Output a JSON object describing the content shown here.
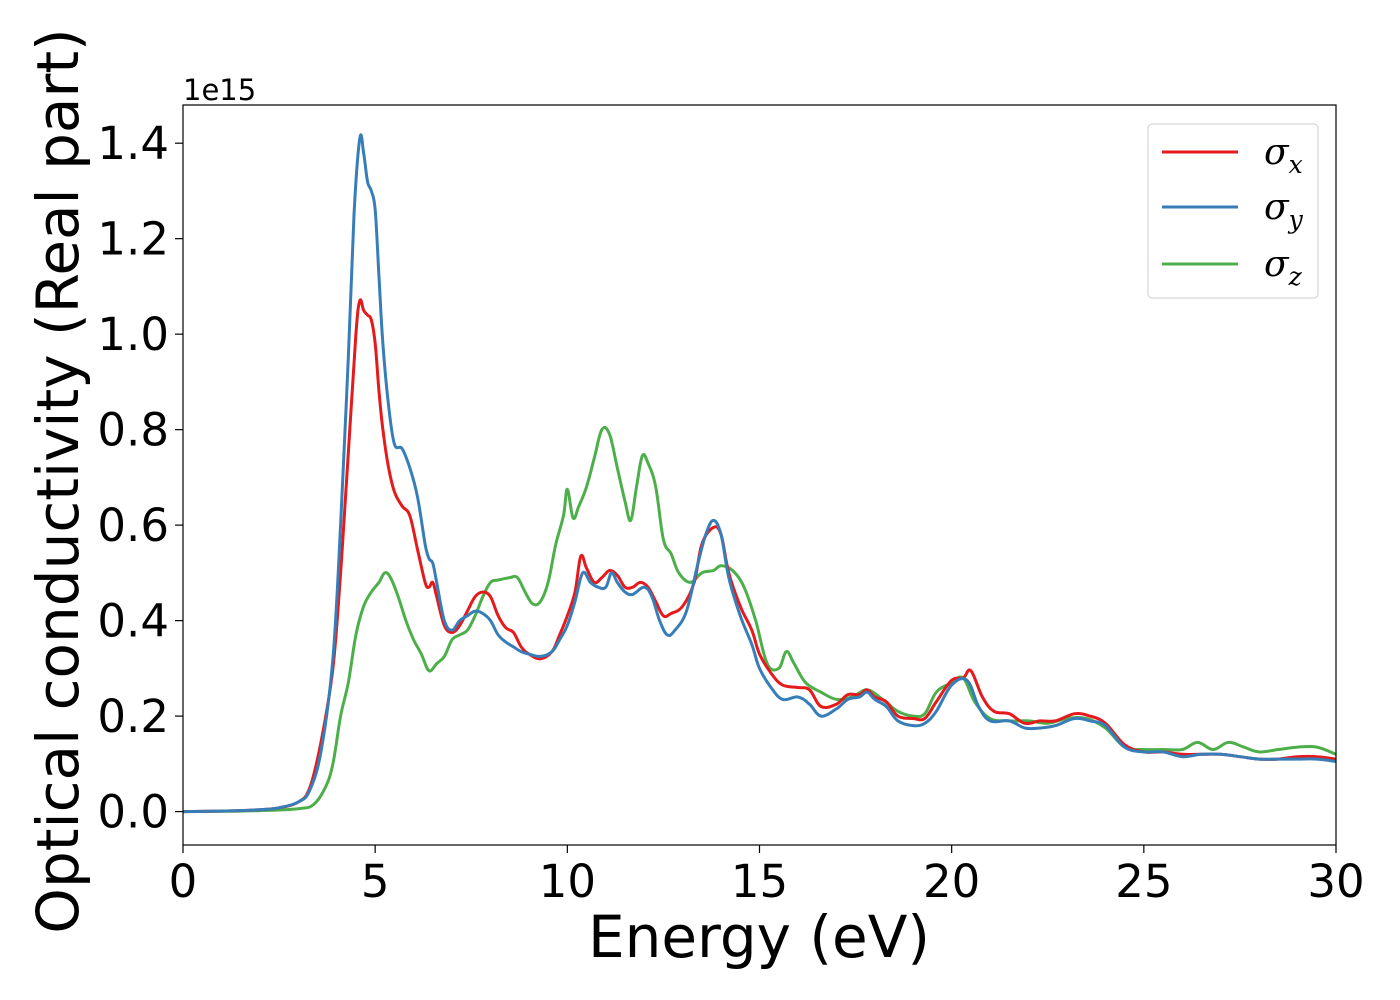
{
  "chart_data": {
    "type": "line",
    "xlabel": "Energy (eV)",
    "ylabel": "Optical conductivity (Real part)",
    "y_offset_text": "1e15",
    "xlim": [
      0,
      30
    ],
    "ylim": [
      -0.07,
      1.48
    ],
    "xticks": [
      0,
      5,
      10,
      15,
      20,
      25,
      30
    ],
    "xtick_labels": [
      "0",
      "5",
      "10",
      "15",
      "20",
      "25",
      "30"
    ],
    "yticks": [
      0.0,
      0.2,
      0.4,
      0.6,
      0.8,
      1.0,
      1.2,
      1.4
    ],
    "ytick_labels": [
      "0.0",
      "0.2",
      "0.4",
      "0.6",
      "0.8",
      "1.0",
      "1.2",
      "1.4"
    ],
    "grid": false,
    "legend_position": "top-right",
    "series": [
      {
        "name": "σx",
        "label_symbol": "σ",
        "label_sub": "x",
        "color": "#e41a1c",
        "points": [
          [
            0,
            0
          ],
          [
            1,
            0.001
          ],
          [
            2,
            0.004
          ],
          [
            2.5,
            0.008
          ],
          [
            3,
            0.02
          ],
          [
            3.3,
            0.05
          ],
          [
            3.6,
            0.15
          ],
          [
            3.9,
            0.3
          ],
          [
            4.1,
            0.5
          ],
          [
            4.3,
            0.75
          ],
          [
            4.5,
            1.0
          ],
          [
            4.6,
            1.07
          ],
          [
            4.7,
            1.05
          ],
          [
            4.8,
            1.04
          ],
          [
            4.9,
            1.03
          ],
          [
            5.0,
            0.98
          ],
          [
            5.1,
            0.88
          ],
          [
            5.2,
            0.8
          ],
          [
            5.35,
            0.72
          ],
          [
            5.5,
            0.67
          ],
          [
            5.7,
            0.64
          ],
          [
            5.9,
            0.62
          ],
          [
            6.1,
            0.55
          ],
          [
            6.3,
            0.48
          ],
          [
            6.4,
            0.47
          ],
          [
            6.5,
            0.48
          ],
          [
            6.6,
            0.45
          ],
          [
            6.8,
            0.39
          ],
          [
            7.0,
            0.375
          ],
          [
            7.2,
            0.39
          ],
          [
            7.4,
            0.42
          ],
          [
            7.6,
            0.45
          ],
          [
            7.8,
            0.46
          ],
          [
            8.0,
            0.45
          ],
          [
            8.2,
            0.41
          ],
          [
            8.4,
            0.385
          ],
          [
            8.6,
            0.375
          ],
          [
            8.8,
            0.345
          ],
          [
            9.0,
            0.33
          ],
          [
            9.3,
            0.32
          ],
          [
            9.6,
            0.335
          ],
          [
            9.8,
            0.37
          ],
          [
            10.0,
            0.41
          ],
          [
            10.2,
            0.46
          ],
          [
            10.35,
            0.535
          ],
          [
            10.5,
            0.51
          ],
          [
            10.7,
            0.48
          ],
          [
            10.9,
            0.49
          ],
          [
            11.1,
            0.505
          ],
          [
            11.3,
            0.495
          ],
          [
            11.5,
            0.47
          ],
          [
            11.7,
            0.47
          ],
          [
            11.9,
            0.48
          ],
          [
            12.1,
            0.47
          ],
          [
            12.3,
            0.44
          ],
          [
            12.5,
            0.41
          ],
          [
            12.7,
            0.415
          ],
          [
            13.0,
            0.43
          ],
          [
            13.3,
            0.48
          ],
          [
            13.5,
            0.56
          ],
          [
            13.8,
            0.595
          ],
          [
            14.0,
            0.58
          ],
          [
            14.2,
            0.5
          ],
          [
            14.5,
            0.43
          ],
          [
            14.8,
            0.38
          ],
          [
            15.0,
            0.33
          ],
          [
            15.3,
            0.29
          ],
          [
            15.6,
            0.265
          ],
          [
            16.0,
            0.26
          ],
          [
            16.3,
            0.255
          ],
          [
            16.6,
            0.22
          ],
          [
            17.0,
            0.225
          ],
          [
            17.3,
            0.245
          ],
          [
            17.6,
            0.245
          ],
          [
            17.8,
            0.255
          ],
          [
            18.0,
            0.24
          ],
          [
            18.3,
            0.23
          ],
          [
            18.6,
            0.2
          ],
          [
            19.0,
            0.195
          ],
          [
            19.3,
            0.195
          ],
          [
            19.6,
            0.23
          ],
          [
            20.0,
            0.275
          ],
          [
            20.3,
            0.28
          ],
          [
            20.5,
            0.295
          ],
          [
            20.8,
            0.24
          ],
          [
            21.1,
            0.21
          ],
          [
            21.5,
            0.205
          ],
          [
            21.9,
            0.185
          ],
          [
            22.3,
            0.19
          ],
          [
            22.7,
            0.19
          ],
          [
            23.2,
            0.205
          ],
          [
            23.6,
            0.2
          ],
          [
            24.0,
            0.185
          ],
          [
            24.5,
            0.14
          ],
          [
            25.0,
            0.125
          ],
          [
            25.5,
            0.125
          ],
          [
            26.0,
            0.12
          ],
          [
            26.5,
            0.12
          ],
          [
            27.0,
            0.12
          ],
          [
            27.5,
            0.115
          ],
          [
            28.0,
            0.11
          ],
          [
            28.5,
            0.11
          ],
          [
            29.0,
            0.115
          ],
          [
            29.5,
            0.115
          ],
          [
            30,
            0.11
          ]
        ]
      },
      {
        "name": "σy",
        "label_symbol": "σ",
        "label_sub": "y",
        "color": "#377eb8",
        "points": [
          [
            0,
            0
          ],
          [
            1,
            0.001
          ],
          [
            2,
            0.004
          ],
          [
            2.5,
            0.008
          ],
          [
            3,
            0.02
          ],
          [
            3.3,
            0.045
          ],
          [
            3.6,
            0.13
          ],
          [
            3.9,
            0.32
          ],
          [
            4.1,
            0.6
          ],
          [
            4.3,
            0.95
          ],
          [
            4.45,
            1.25
          ],
          [
            4.6,
            1.41
          ],
          [
            4.7,
            1.38
          ],
          [
            4.8,
            1.32
          ],
          [
            4.9,
            1.3
          ],
          [
            5.0,
            1.26
          ],
          [
            5.1,
            1.12
          ],
          [
            5.2,
            0.98
          ],
          [
            5.35,
            0.85
          ],
          [
            5.5,
            0.77
          ],
          [
            5.7,
            0.76
          ],
          [
            5.9,
            0.72
          ],
          [
            6.1,
            0.66
          ],
          [
            6.3,
            0.56
          ],
          [
            6.4,
            0.53
          ],
          [
            6.5,
            0.52
          ],
          [
            6.6,
            0.48
          ],
          [
            6.8,
            0.4
          ],
          [
            7.0,
            0.38
          ],
          [
            7.2,
            0.4
          ],
          [
            7.4,
            0.41
          ],
          [
            7.6,
            0.42
          ],
          [
            7.8,
            0.415
          ],
          [
            8.0,
            0.4
          ],
          [
            8.2,
            0.37
          ],
          [
            8.4,
            0.355
          ],
          [
            8.6,
            0.345
          ],
          [
            8.8,
            0.335
          ],
          [
            9.0,
            0.33
          ],
          [
            9.3,
            0.325
          ],
          [
            9.6,
            0.335
          ],
          [
            9.8,
            0.36
          ],
          [
            10.0,
            0.39
          ],
          [
            10.2,
            0.44
          ],
          [
            10.4,
            0.5
          ],
          [
            10.6,
            0.48
          ],
          [
            10.8,
            0.47
          ],
          [
            11.0,
            0.47
          ],
          [
            11.15,
            0.5
          ],
          [
            11.3,
            0.48
          ],
          [
            11.5,
            0.46
          ],
          [
            11.7,
            0.455
          ],
          [
            12.0,
            0.47
          ],
          [
            12.2,
            0.45
          ],
          [
            12.4,
            0.4
          ],
          [
            12.6,
            0.37
          ],
          [
            12.8,
            0.38
          ],
          [
            13.1,
            0.42
          ],
          [
            13.4,
            0.52
          ],
          [
            13.6,
            0.58
          ],
          [
            13.8,
            0.61
          ],
          [
            14.0,
            0.58
          ],
          [
            14.2,
            0.49
          ],
          [
            14.5,
            0.41
          ],
          [
            14.8,
            0.35
          ],
          [
            15.0,
            0.3
          ],
          [
            15.3,
            0.26
          ],
          [
            15.6,
            0.235
          ],
          [
            16.0,
            0.24
          ],
          [
            16.3,
            0.225
          ],
          [
            16.6,
            0.2
          ],
          [
            17.0,
            0.215
          ],
          [
            17.3,
            0.235
          ],
          [
            17.6,
            0.24
          ],
          [
            17.8,
            0.25
          ],
          [
            18.0,
            0.235
          ],
          [
            18.3,
            0.22
          ],
          [
            18.6,
            0.19
          ],
          [
            19.0,
            0.18
          ],
          [
            19.3,
            0.185
          ],
          [
            19.6,
            0.21
          ],
          [
            20.0,
            0.265
          ],
          [
            20.4,
            0.275
          ],
          [
            20.7,
            0.22
          ],
          [
            21.0,
            0.19
          ],
          [
            21.5,
            0.19
          ],
          [
            21.9,
            0.175
          ],
          [
            22.3,
            0.175
          ],
          [
            22.7,
            0.18
          ],
          [
            23.2,
            0.195
          ],
          [
            23.6,
            0.19
          ],
          [
            24.0,
            0.18
          ],
          [
            24.5,
            0.135
          ],
          [
            25.0,
            0.125
          ],
          [
            25.5,
            0.125
          ],
          [
            26.0,
            0.115
          ],
          [
            26.5,
            0.12
          ],
          [
            27.0,
            0.12
          ],
          [
            27.5,
            0.115
          ],
          [
            28.0,
            0.11
          ],
          [
            28.5,
            0.11
          ],
          [
            29.0,
            0.11
          ],
          [
            29.5,
            0.11
          ],
          [
            30,
            0.105
          ]
        ]
      },
      {
        "name": "σz",
        "label_symbol": "σ",
        "label_sub": "z",
        "color": "#4daf4a",
        "points": [
          [
            0,
            0
          ],
          [
            1,
            0.0005
          ],
          [
            2,
            0.002
          ],
          [
            3,
            0.006
          ],
          [
            3.4,
            0.015
          ],
          [
            3.7,
            0.05
          ],
          [
            3.9,
            0.1
          ],
          [
            4.1,
            0.2
          ],
          [
            4.3,
            0.27
          ],
          [
            4.5,
            0.37
          ],
          [
            4.7,
            0.43
          ],
          [
            4.9,
            0.46
          ],
          [
            5.1,
            0.48
          ],
          [
            5.25,
            0.5
          ],
          [
            5.4,
            0.49
          ],
          [
            5.6,
            0.45
          ],
          [
            5.8,
            0.4
          ],
          [
            6.0,
            0.36
          ],
          [
            6.2,
            0.33
          ],
          [
            6.4,
            0.295
          ],
          [
            6.6,
            0.31
          ],
          [
            6.8,
            0.325
          ],
          [
            7.0,
            0.36
          ],
          [
            7.2,
            0.37
          ],
          [
            7.4,
            0.38
          ],
          [
            7.6,
            0.41
          ],
          [
            7.8,
            0.45
          ],
          [
            8.0,
            0.48
          ],
          [
            8.2,
            0.485
          ],
          [
            8.5,
            0.49
          ],
          [
            8.7,
            0.49
          ],
          [
            8.9,
            0.46
          ],
          [
            9.1,
            0.435
          ],
          [
            9.3,
            0.44
          ],
          [
            9.5,
            0.48
          ],
          [
            9.7,
            0.56
          ],
          [
            9.9,
            0.62
          ],
          [
            10.0,
            0.675
          ],
          [
            10.15,
            0.615
          ],
          [
            10.3,
            0.64
          ],
          [
            10.5,
            0.68
          ],
          [
            10.7,
            0.74
          ],
          [
            10.9,
            0.8
          ],
          [
            11.1,
            0.79
          ],
          [
            11.3,
            0.72
          ],
          [
            11.5,
            0.65
          ],
          [
            11.65,
            0.61
          ],
          [
            11.8,
            0.68
          ],
          [
            11.95,
            0.745
          ],
          [
            12.1,
            0.73
          ],
          [
            12.3,
            0.68
          ],
          [
            12.5,
            0.57
          ],
          [
            12.7,
            0.54
          ],
          [
            12.9,
            0.5
          ],
          [
            13.2,
            0.48
          ],
          [
            13.5,
            0.5
          ],
          [
            13.8,
            0.505
          ],
          [
            14.0,
            0.515
          ],
          [
            14.3,
            0.505
          ],
          [
            14.6,
            0.47
          ],
          [
            14.9,
            0.4
          ],
          [
            15.2,
            0.31
          ],
          [
            15.5,
            0.3
          ],
          [
            15.7,
            0.335
          ],
          [
            15.9,
            0.31
          ],
          [
            16.2,
            0.27
          ],
          [
            16.6,
            0.25
          ],
          [
            17.0,
            0.235
          ],
          [
            17.4,
            0.24
          ],
          [
            17.8,
            0.255
          ],
          [
            18.2,
            0.235
          ],
          [
            18.6,
            0.21
          ],
          [
            19.0,
            0.2
          ],
          [
            19.3,
            0.205
          ],
          [
            19.6,
            0.25
          ],
          [
            20.0,
            0.27
          ],
          [
            20.3,
            0.28
          ],
          [
            20.6,
            0.23
          ],
          [
            21.0,
            0.195
          ],
          [
            21.5,
            0.19
          ],
          [
            22.0,
            0.19
          ],
          [
            22.5,
            0.185
          ],
          [
            23.0,
            0.195
          ],
          [
            23.5,
            0.195
          ],
          [
            24.0,
            0.175
          ],
          [
            24.5,
            0.135
          ],
          [
            25.0,
            0.13
          ],
          [
            25.5,
            0.13
          ],
          [
            26.0,
            0.13
          ],
          [
            26.4,
            0.145
          ],
          [
            26.8,
            0.13
          ],
          [
            27.2,
            0.145
          ],
          [
            27.6,
            0.135
          ],
          [
            28.0,
            0.125
          ],
          [
            28.5,
            0.13
          ],
          [
            29.0,
            0.135
          ],
          [
            29.5,
            0.135
          ],
          [
            30,
            0.12
          ]
        ]
      }
    ]
  }
}
